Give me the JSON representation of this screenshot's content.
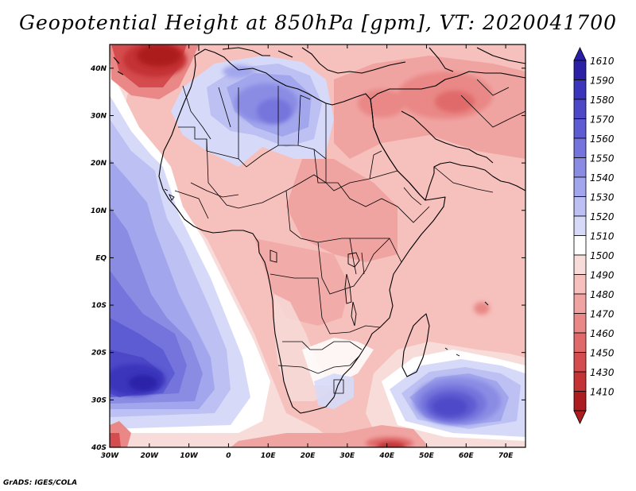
{
  "title": "Geopotential Height at 850hPa [gpm], VT: 2020041700",
  "credit": "GrADS: IGES/COLA",
  "map": {
    "projection": "latlon",
    "lon_range": [
      -30,
      75
    ],
    "lat_range": [
      -40,
      45
    ],
    "lon_ticks": [
      "30W",
      "20W",
      "10W",
      "0",
      "10E",
      "20E",
      "30E",
      "40E",
      "50E",
      "60E",
      "70E"
    ],
    "lat_ticks": [
      "40N",
      "30N",
      "20N",
      "10N",
      "EQ",
      "10S",
      "20S",
      "30S",
      "40S"
    ],
    "base_color": "#f6c0bd"
  },
  "colorbar": {
    "levels": [
      "1610",
      "1590",
      "1580",
      "1570",
      "1560",
      "1550",
      "1540",
      "1530",
      "1520",
      "1510",
      "1500",
      "1490",
      "1480",
      "1470",
      "1460",
      "1450",
      "1430",
      "1410"
    ],
    "colors": [
      "#2a20a8",
      "#3b34bc",
      "#4d48c8",
      "#5e5cd2",
      "#7474dc",
      "#8a8ce4",
      "#a2a6ec",
      "#bcc0f2",
      "#d6daf8",
      "#ffffff",
      "#f8dcd9",
      "#f6c0bd",
      "#f0a4a2",
      "#e98886",
      "#e06a6a",
      "#d44c4e",
      "#c43234",
      "#ad1c1e"
    ]
  },
  "fields": [
    {
      "name": "high-atlantic-south",
      "lon": -20,
      "lat": -27,
      "value": 1610,
      "color": "#2a20a8"
    },
    {
      "name": "high-indian-ocean",
      "lon": 56,
      "lat": -30,
      "value": 1590,
      "color": "#3b34bc"
    },
    {
      "name": "high-sahara",
      "lon": 5,
      "lat": 32,
      "value": 1560,
      "color": "#7474dc"
    },
    {
      "name": "low-north-atlantic",
      "lon": -22,
      "lat": 42,
      "value": 1410,
      "color": "#ad1c1e"
    },
    {
      "name": "low-south-40e",
      "lon": 40,
      "lat": -40,
      "value": 1430,
      "color": "#c43234"
    },
    {
      "name": "low-middle-east",
      "lon": 55,
      "lat": 32,
      "value": 1460,
      "color": "#e06a6a"
    },
    {
      "name": "low-madagascar-east",
      "lon": 64,
      "lat": -11,
      "value": 1470,
      "color": "#e98886"
    }
  ]
}
